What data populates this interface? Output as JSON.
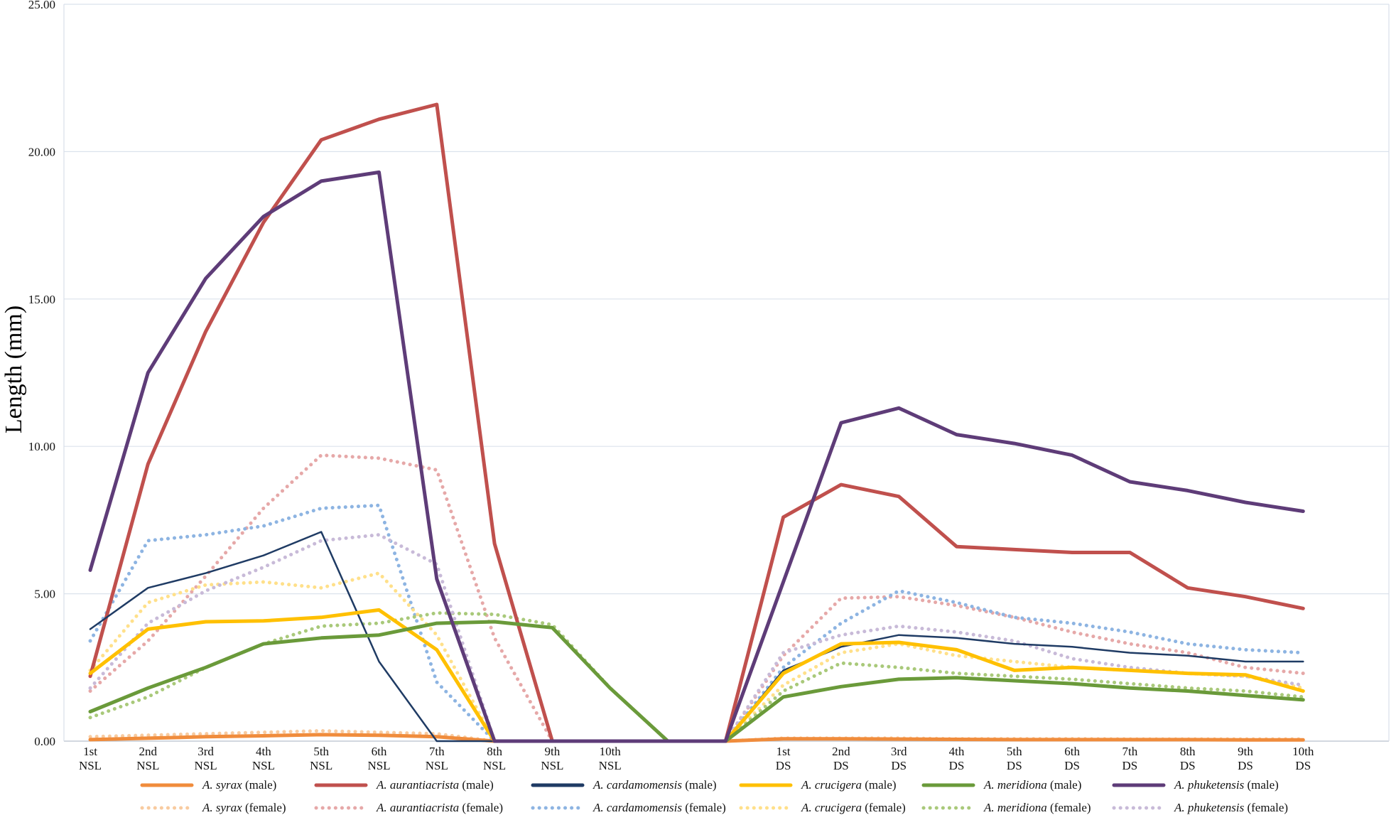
{
  "chart_data": {
    "type": "line",
    "title": "",
    "xlabel": "",
    "ylabel": "Length (mm)",
    "ylim": [
      0,
      25
    ],
    "y_ticks": [
      "0.00",
      "5.00",
      "10.00",
      "15.00",
      "20.00",
      "25.00"
    ],
    "grid": "horizontal",
    "legend_position": "bottom",
    "categories": [
      [
        "1st",
        "NSL"
      ],
      [
        "2nd",
        "NSL"
      ],
      [
        "3rd",
        "NSL"
      ],
      [
        "4th",
        "NSL"
      ],
      [
        "5th",
        "NSL"
      ],
      [
        "6th",
        "NSL"
      ],
      [
        "7th",
        "NSL"
      ],
      [
        "8th",
        "NSL"
      ],
      [
        "9th",
        "NSL"
      ],
      [
        "10th",
        "NSL"
      ],
      [
        "",
        ""
      ],
      [
        "",
        ""
      ],
      [
        "1st",
        "DS"
      ],
      [
        "2nd",
        "DS"
      ],
      [
        "3rd",
        "DS"
      ],
      [
        "4th",
        "DS"
      ],
      [
        "5th",
        "DS"
      ],
      [
        "6th",
        "DS"
      ],
      [
        "7th",
        "DS"
      ],
      [
        "8th",
        "DS"
      ],
      [
        "9th",
        "DS"
      ],
      [
        "10th",
        "DS"
      ]
    ],
    "series": [
      {
        "name": "A. syrax (male)",
        "species": "A. syrax",
        "sex": "(male)",
        "color": "#F08C3C",
        "style": "solid",
        "width": 5,
        "values": [
          0.05,
          0.1,
          0.15,
          0.18,
          0.22,
          0.2,
          0.15,
          0.0,
          0.0,
          0.0,
          0.0,
          0.0,
          0.08,
          0.08,
          0.07,
          0.06,
          0.05,
          0.05,
          0.05,
          0.05,
          0.04,
          0.04
        ]
      },
      {
        "name": "A. aurantiacrista (male)",
        "species": "A. aurantiacrista",
        "sex": "(male)",
        "color": "#C0504D",
        "style": "solid",
        "width": 5,
        "values": [
          2.2,
          9.4,
          13.9,
          17.6,
          20.4,
          21.1,
          21.6,
          6.7,
          0.0,
          0.0,
          0.0,
          0.0,
          7.6,
          8.7,
          8.3,
          6.6,
          6.5,
          6.4,
          6.4,
          5.2,
          4.9,
          4.5
        ]
      },
      {
        "name": "A. cardamomensis (male)",
        "species": "A. cardamomensis",
        "sex": "(male)",
        "color": "#1F3B64",
        "style": "solid",
        "width": 2.5,
        "values": [
          3.8,
          5.2,
          5.7,
          6.3,
          7.1,
          2.7,
          0.0,
          0.0,
          0.0,
          0.0,
          0.0,
          0.0,
          2.4,
          3.2,
          3.6,
          3.5,
          3.3,
          3.2,
          3.0,
          2.9,
          2.7,
          2.7
        ]
      },
      {
        "name": "A. crucigera (male)",
        "species": "A. crucigera",
        "sex": "(male)",
        "color": "#FFC000",
        "style": "solid",
        "width": 5,
        "values": [
          2.3,
          3.8,
          4.05,
          4.08,
          4.2,
          4.45,
          3.1,
          0.0,
          0.0,
          0.0,
          0.0,
          0.0,
          2.3,
          3.3,
          3.35,
          3.1,
          2.4,
          2.5,
          2.4,
          2.3,
          2.25,
          1.7
        ]
      },
      {
        "name": "A. meridiona (male)",
        "species": "A. meridiona",
        "sex": "(male)",
        "color": "#6A9A3A",
        "style": "solid",
        "width": 5,
        "values": [
          1.0,
          1.8,
          2.5,
          3.3,
          3.5,
          3.6,
          4.0,
          4.05,
          3.85,
          1.8,
          0.0,
          0.0,
          1.5,
          1.85,
          2.1,
          2.15,
          2.05,
          1.95,
          1.8,
          1.7,
          1.55,
          1.4
        ]
      },
      {
        "name": "A. phuketensis (male)",
        "species": "A. phuketensis",
        "sex": "(male)",
        "color": "#5E3C78",
        "style": "solid",
        "width": 5,
        "values": [
          5.8,
          12.5,
          15.7,
          17.8,
          19.0,
          19.3,
          5.5,
          0.0,
          0.0,
          0.0,
          0.0,
          0.0,
          5.4,
          10.8,
          11.3,
          10.4,
          10.1,
          9.7,
          8.8,
          8.5,
          8.1,
          7.8
        ]
      },
      {
        "name": "A. syrax (female)",
        "species": "A. syrax",
        "sex": "(female)",
        "color": "#F8CBA0",
        "style": "dotted",
        "width": 5,
        "values": [
          0.15,
          0.2,
          0.25,
          0.3,
          0.35,
          0.3,
          0.25,
          0.0,
          0.0,
          0.0,
          0.0,
          0.0,
          0.1,
          0.1,
          0.1,
          0.08,
          0.08,
          0.08,
          0.07,
          0.07,
          0.07,
          0.07
        ]
      },
      {
        "name": "A. aurantiacrista (female)",
        "species": "A. aurantiacrista",
        "sex": "(female)",
        "color": "#E6A8A8",
        "style": "dotted",
        "width": 5,
        "values": [
          1.7,
          3.4,
          5.6,
          7.9,
          9.7,
          9.6,
          9.2,
          3.5,
          0.0,
          0.0,
          0.0,
          0.0,
          2.9,
          4.85,
          4.9,
          4.6,
          4.2,
          3.7,
          3.3,
          3.0,
          2.5,
          2.3
        ]
      },
      {
        "name": "A. cardamomensis (female)",
        "species": "A. cardamomensis",
        "sex": "(female)",
        "color": "#8DB4E2",
        "style": "dotted",
        "width": 5,
        "values": [
          3.4,
          6.8,
          7.0,
          7.3,
          7.9,
          8.0,
          2.0,
          0.0,
          0.0,
          0.0,
          0.0,
          0.0,
          2.5,
          4.0,
          5.1,
          4.7,
          4.2,
          4.0,
          3.7,
          3.3,
          3.1,
          3.0
        ]
      },
      {
        "name": "A. crucigera (female)",
        "species": "A. crucigera",
        "sex": "(female)",
        "color": "#FFE08A",
        "style": "dotted",
        "width": 5,
        "values": [
          2.4,
          4.7,
          5.3,
          5.4,
          5.2,
          5.7,
          3.6,
          0.0,
          0.0,
          0.0,
          0.0,
          0.0,
          1.9,
          3.0,
          3.3,
          2.9,
          2.7,
          2.5,
          2.4,
          2.3,
          2.2,
          1.8
        ]
      },
      {
        "name": "A. meridiona (female)",
        "species": "A. meridiona",
        "sex": "(female)",
        "color": "#A9C97A",
        "style": "dotted",
        "width": 5,
        "values": [
          0.8,
          1.5,
          2.5,
          3.3,
          3.9,
          4.0,
          4.35,
          4.3,
          3.95,
          1.8,
          0.0,
          0.0,
          1.7,
          2.65,
          2.5,
          2.3,
          2.2,
          2.1,
          1.95,
          1.8,
          1.7,
          1.5
        ]
      },
      {
        "name": "A. phuketensis (female)",
        "species": "A. phuketensis",
        "sex": "(female)",
        "color": "#C8BAD8",
        "style": "dotted",
        "width": 5,
        "values": [
          1.8,
          4.0,
          5.1,
          5.9,
          6.8,
          7.0,
          6.0,
          0.0,
          0.0,
          0.0,
          0.0,
          0.0,
          3.0,
          3.6,
          3.9,
          3.7,
          3.4,
          2.8,
          2.5,
          2.3,
          2.2,
          1.9
        ]
      }
    ]
  }
}
